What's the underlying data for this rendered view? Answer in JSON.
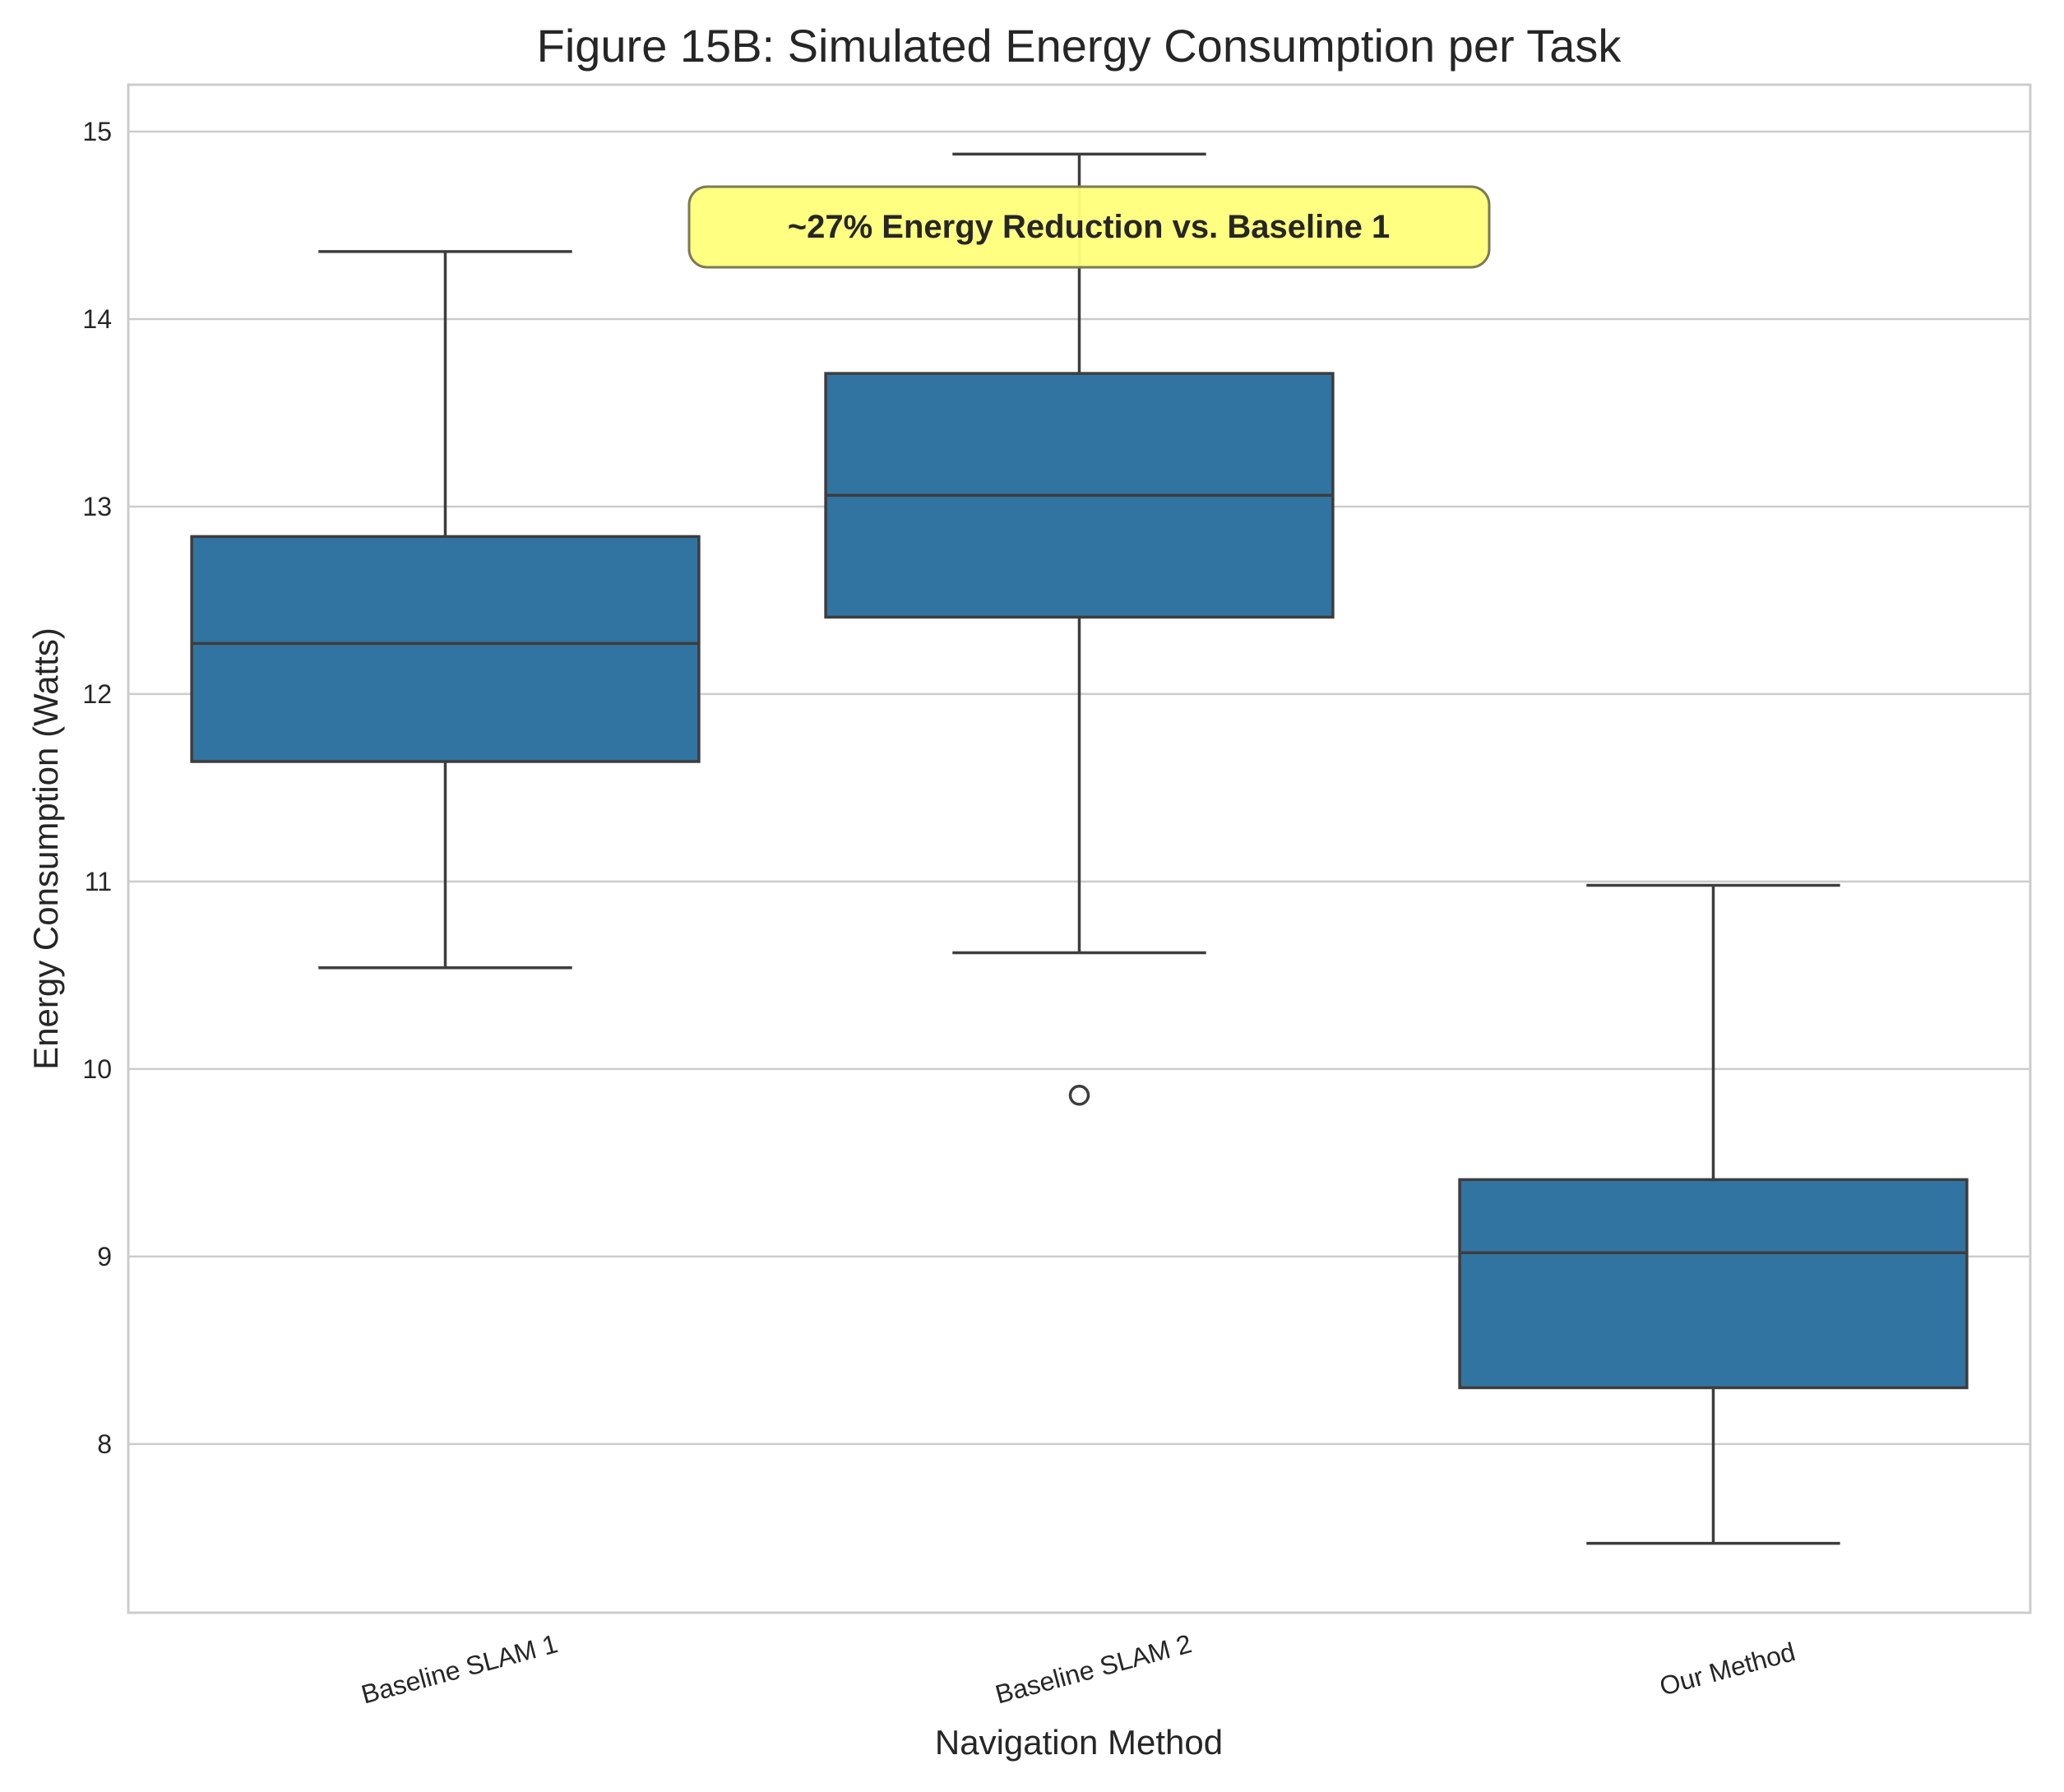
{
  "chart_data": {
    "type": "box",
    "title": "Figure 15B: Simulated Energy Consumption per Task",
    "xlabel": "Navigation Method",
    "ylabel": "Energy Consumption (Watts)",
    "ylim": [
      7.1,
      15.25
    ],
    "yticks": [
      "8",
      "9",
      "10",
      "11",
      "12",
      "13",
      "14",
      "15"
    ],
    "grid": "horizontal",
    "categories": [
      "Baseline SLAM 1",
      "Baseline SLAM 2",
      "Our Method"
    ],
    "boxes": [
      {
        "category": "Baseline SLAM 1",
        "whisker_low": 10.54,
        "q1": 11.64,
        "median": 12.27,
        "q3": 12.84,
        "whisker_high": 14.36,
        "outliers": []
      },
      {
        "category": "Baseline SLAM 2",
        "whisker_low": 10.62,
        "q1": 12.41,
        "median": 13.06,
        "q3": 13.71,
        "whisker_high": 14.88,
        "outliers": [
          9.86
        ]
      },
      {
        "category": "Our Method",
        "whisker_low": 7.47,
        "q1": 8.3,
        "median": 9.02,
        "q3": 9.41,
        "whisker_high": 10.98,
        "outliers": []
      }
    ],
    "annotation": "~27% Energy Reduction vs. Baseline 1",
    "colors": {
      "box_fill": "#3274a1",
      "box_edge": "#3d3d3d",
      "grid": "#cccccc",
      "spine": "#cccccc",
      "annotation_fill": "#ffff7a",
      "annotation_edge": "#7a7a55"
    }
  }
}
